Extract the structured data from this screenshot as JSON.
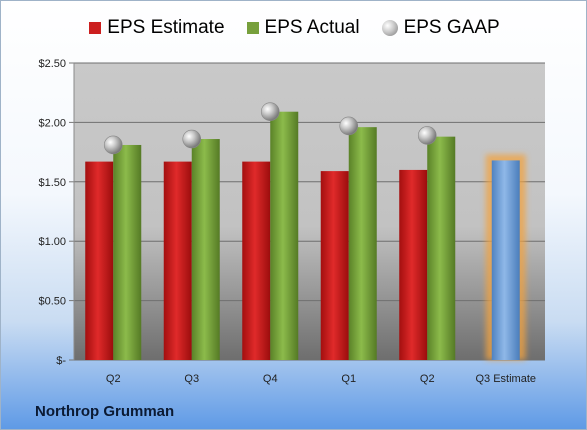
{
  "chart_data": {
    "type": "bar",
    "categories": [
      "Q2",
      "Q3",
      "Q4",
      "Q1",
      "Q2",
      "Q3 Estimate"
    ],
    "series": [
      {
        "name": "EPS Estimate",
        "values": [
          1.67,
          1.67,
          1.67,
          1.59,
          1.6,
          null
        ],
        "color": "#cc1f1f"
      },
      {
        "name": "EPS Actual",
        "values": [
          1.81,
          1.86,
          2.09,
          1.96,
          1.88,
          null
        ],
        "color": "#77a03c"
      },
      {
        "name": "EPS GAAP",
        "values": [
          1.81,
          1.86,
          2.09,
          1.97,
          1.89,
          null
        ],
        "type": "scatter",
        "color": "#a9a9a9"
      }
    ],
    "estimate_bar": {
      "category": "Q3 Estimate",
      "value": 1.68,
      "color": "#6fa0d8",
      "glow_color": "#f2a341"
    },
    "y_ticks": [
      "$-",
      "$0.50",
      "$1.00",
      "$1.50",
      "$2.00",
      "$2.50"
    ],
    "ylim": [
      0,
      2.5
    ],
    "grid": true,
    "legend_position": "top"
  },
  "legend": [
    "EPS Estimate",
    "EPS Actual",
    "EPS GAAP"
  ],
  "company": "Northrop Grumman"
}
